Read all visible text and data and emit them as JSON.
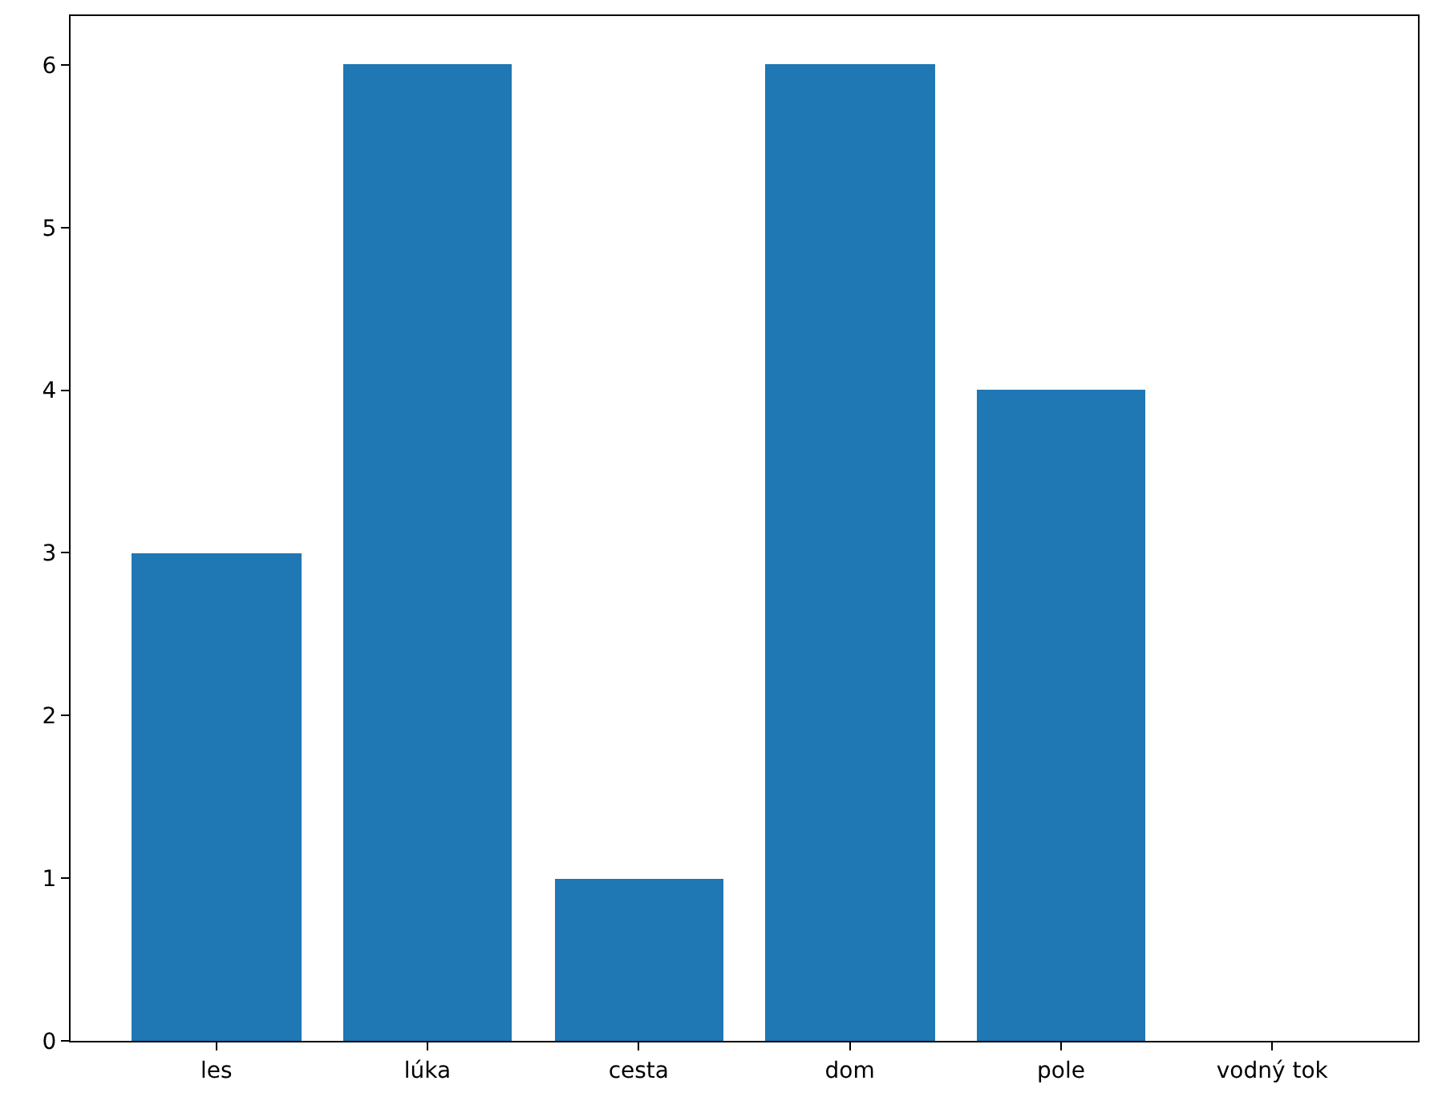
{
  "chart_data": {
    "type": "bar",
    "categories": [
      "les",
      "lúka",
      "cesta",
      "dom",
      "pole",
      "vodný tok"
    ],
    "values": [
      3,
      6,
      1,
      6,
      4,
      0
    ],
    "color": "#1f77b4",
    "ylim": [
      0,
      6.3
    ],
    "yticks": [
      0,
      1,
      2,
      3,
      4,
      5,
      6
    ],
    "legend": false
  }
}
